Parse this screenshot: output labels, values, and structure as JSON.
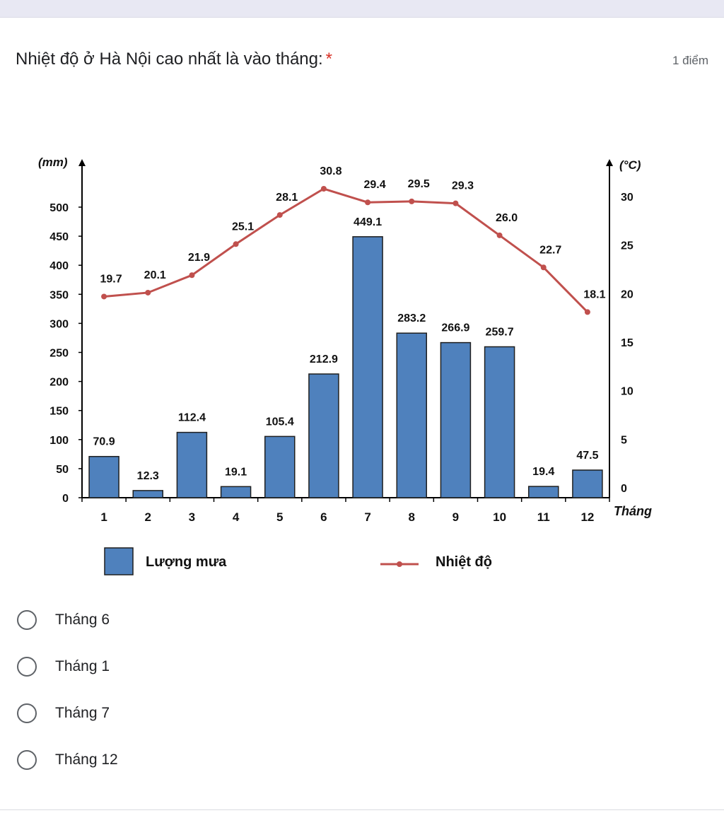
{
  "question": {
    "title": "Nhiệt độ ở Hà Nội cao nhất là vào tháng:",
    "required_mark": "*",
    "points": "1 điểm"
  },
  "chart_data": {
    "type": "bar+line",
    "categories": [
      "1",
      "2",
      "3",
      "4",
      "5",
      "6",
      "7",
      "8",
      "9",
      "10",
      "11",
      "12"
    ],
    "series": [
      {
        "name": "Lượng mưa",
        "kind": "bar",
        "axis": "left",
        "color": "#4f81bd",
        "values": [
          70.9,
          12.3,
          112.4,
          19.1,
          105.4,
          212.9,
          449.1,
          283.2,
          266.9,
          259.7,
          19.4,
          47.5
        ]
      },
      {
        "name": "Nhiệt độ",
        "kind": "line",
        "axis": "right",
        "color": "#c0504d",
        "values": [
          19.7,
          20.1,
          21.9,
          25.1,
          28.1,
          30.8,
          29.4,
          29.5,
          29.3,
          26.0,
          22.7,
          18.1
        ]
      }
    ],
    "left_axis": {
      "label": "(mm)",
      "ticks": [
        0,
        50,
        100,
        150,
        200,
        250,
        300,
        350,
        400,
        450,
        500
      ],
      "range": [
        0,
        500
      ]
    },
    "right_axis": {
      "label": "(°C)",
      "ticks": [
        0,
        5,
        10,
        15,
        20,
        25,
        30
      ],
      "range": [
        0,
        30
      ]
    },
    "xlabel": "Tháng",
    "legend": {
      "placement": "bottom",
      "items": [
        "Lượng mưa",
        "Nhiệt độ"
      ]
    }
  },
  "options": [
    {
      "label": "Tháng 6"
    },
    {
      "label": "Tháng 1"
    },
    {
      "label": "Tháng 7"
    },
    {
      "label": "Tháng 12"
    }
  ]
}
